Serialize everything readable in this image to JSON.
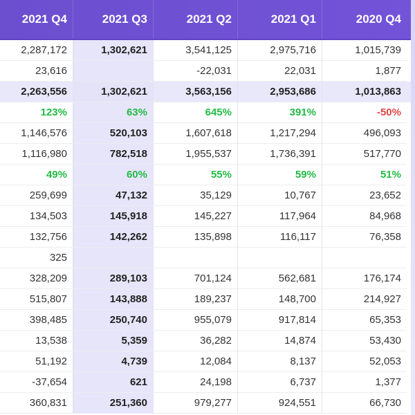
{
  "headers": [
    "2021 Q4",
    "2021 Q3",
    "2021 Q2",
    "2021 Q1",
    "2020 Q4"
  ],
  "rows": [
    {
      "cells": [
        "2,287,172",
        "1,302,621",
        "3,541,125",
        "2,975,716",
        "1,015,739"
      ]
    },
    {
      "cells": [
        "23,616",
        "",
        "-22,031",
        "22,031",
        "1,877"
      ]
    },
    {
      "cells": [
        "2,263,556",
        "1,302,621",
        "3,563,156",
        "2,953,686",
        "1,013,863"
      ]
    },
    {
      "cells": [
        "123%",
        "63%",
        "645%",
        "391%",
        "-50%"
      ]
    },
    {
      "cells": [
        "1,146,576",
        "520,103",
        "1,607,618",
        "1,217,294",
        "496,093"
      ]
    },
    {
      "cells": [
        "1,116,980",
        "782,518",
        "1,955,537",
        "1,736,391",
        "517,770"
      ]
    },
    {
      "cells": [
        "49%",
        "60%",
        "55%",
        "59%",
        "51%"
      ]
    },
    {
      "cells": [
        "259,699",
        "47,132",
        "35,129",
        "10,767",
        "23,652"
      ]
    },
    {
      "cells": [
        "134,503",
        "145,918",
        "145,227",
        "117,964",
        "84,968"
      ]
    },
    {
      "cells": [
        "132,756",
        "142,262",
        "135,898",
        "116,117",
        "76,358"
      ]
    },
    {
      "cells": [
        "325",
        "",
        "",
        "",
        ""
      ]
    },
    {
      "cells": [
        "328,209",
        "289,103",
        "701,124",
        "562,681",
        "176,174"
      ]
    },
    {
      "cells": [
        "515,807",
        "143,888",
        "189,237",
        "148,700",
        "214,927"
      ]
    },
    {
      "cells": [
        "398,485",
        "250,740",
        "955,079",
        "917,814",
        "65,353"
      ]
    },
    {
      "cells": [
        "13,538",
        "5,359",
        "36,282",
        "14,874",
        "53,430"
      ]
    },
    {
      "cells": [
        "51,192",
        "4,739",
        "12,084",
        "8,137",
        "52,053"
      ]
    },
    {
      "cells": [
        "-37,654",
        "621",
        "24,198",
        "6,737",
        "1,377"
      ]
    },
    {
      "cells": [
        "360,831",
        "251,360",
        "979,277",
        "924,551",
        "66,730"
      ]
    }
  ],
  "colors": {
    "header_bg": "#6b4fcf",
    "highlight_row_bg": "#e9e8fb",
    "highlight_col_bg": "#e6e5fa",
    "positive": "#22bb44",
    "negative": "#e04646"
  }
}
